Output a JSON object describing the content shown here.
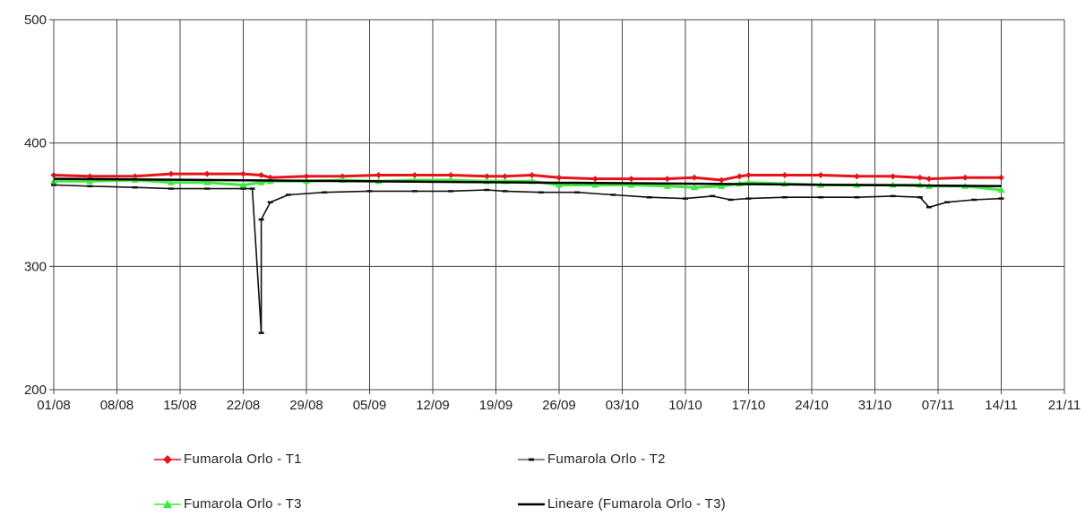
{
  "chart_data": {
    "type": "line",
    "title": "",
    "xlabel": "",
    "ylabel": "",
    "ylim": [
      200,
      500
    ],
    "yticks": [
      "200",
      "300",
      "400",
      "500"
    ],
    "xlim_days": [
      0,
      112
    ],
    "xticks": [
      "01/08",
      "08/08",
      "15/08",
      "22/08",
      "29/08",
      "05/09",
      "12/09",
      "19/09",
      "26/09",
      "03/10",
      "10/10",
      "17/10",
      "24/10",
      "31/10",
      "07/11",
      "14/11",
      "21/11"
    ],
    "grid": true,
    "legend_position": "bottom",
    "series": [
      {
        "name": "Fumarola Orlo - T1",
        "color": "#e8121a",
        "marker": "diamond",
        "x": [
          "01/08",
          "05/08",
          "10/08",
          "14/08",
          "18/08",
          "22/08",
          "24/08",
          "25/08",
          "29/08",
          "02/09",
          "06/09",
          "10/09",
          "14/09",
          "18/09",
          "20/09",
          "23/09",
          "26/09",
          "30/09",
          "04/10",
          "08/10",
          "11/10",
          "14/10",
          "16/10",
          "17/10",
          "21/10",
          "25/10",
          "29/10",
          "02/11",
          "05/11",
          "06/11",
          "10/11",
          "14/11"
        ],
        "values": [
          374,
          373,
          373,
          375,
          375,
          375,
          374,
          372,
          373,
          373,
          374,
          374,
          374,
          373,
          373,
          374,
          372,
          371,
          371,
          371,
          372,
          370,
          373,
          374,
          374,
          374,
          373,
          373,
          372,
          371,
          372,
          372
        ]
      },
      {
        "name": "Fumarola Orlo - T2",
        "color": "#111111",
        "marker": "dash",
        "x": [
          "01/08",
          "05/08",
          "10/08",
          "14/08",
          "18/08",
          "22/08",
          "23/08",
          "24/08",
          "24/08",
          "25/08",
          "27/08",
          "31/08",
          "05/09",
          "10/09",
          "14/09",
          "18/09",
          "20/09",
          "24/09",
          "28/09",
          "02/10",
          "06/10",
          "10/10",
          "13/10",
          "15/10",
          "17/10",
          "21/10",
          "25/10",
          "29/10",
          "02/11",
          "05/11",
          "06/11",
          "08/11",
          "11/11",
          "14/11"
        ],
        "values": [
          366,
          365,
          364,
          363,
          363,
          363,
          363,
          246,
          338,
          352,
          358,
          360,
          361,
          361,
          361,
          362,
          361,
          360,
          360,
          358,
          356,
          355,
          357,
          354,
          355,
          356,
          356,
          356,
          357,
          356,
          348,
          352,
          354,
          355
        ]
      },
      {
        "name": "Fumarola Orlo - T3",
        "color": "#3ee83e",
        "marker": "triangle",
        "x": [
          "01/08",
          "05/08",
          "10/08",
          "14/08",
          "18/08",
          "22/08",
          "24/08",
          "25/08",
          "29/08",
          "02/09",
          "06/09",
          "10/09",
          "14/09",
          "18/09",
          "20/09",
          "23/09",
          "26/09",
          "30/09",
          "04/10",
          "08/10",
          "11/10",
          "14/10",
          "16/10",
          "17/10",
          "21/10",
          "25/10",
          "29/10",
          "02/11",
          "05/11",
          "06/11",
          "10/11",
          "14/11"
        ],
        "values": [
          369,
          369,
          370,
          368,
          368,
          366,
          368,
          369,
          369,
          370,
          369,
          370,
          370,
          369,
          369,
          369,
          366,
          366,
          366,
          365,
          364,
          365,
          367,
          368,
          367,
          366,
          366,
          366,
          366,
          365,
          365,
          362
        ]
      },
      {
        "name": "Lineare (Fumarola Orlo - T3)",
        "color": "#000000",
        "marker": "none",
        "x": [
          "01/08",
          "14/11"
        ],
        "values": [
          371,
          365
        ]
      }
    ]
  }
}
